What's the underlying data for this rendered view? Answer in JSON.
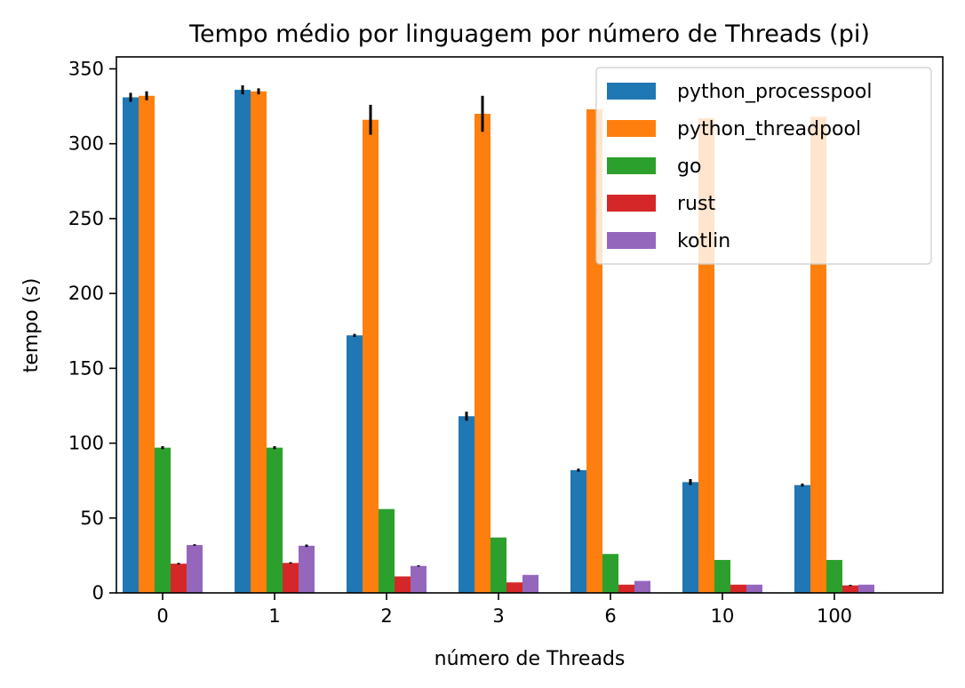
{
  "chart_data": {
    "type": "bar",
    "title": "Tempo médio por linguagem por número de Threads (pi)",
    "xlabel": "número de Threads",
    "ylabel": "tempo (s)",
    "categories": [
      "0",
      "1",
      "2",
      "3",
      "6",
      "10",
      "100"
    ],
    "ylim": [
      0,
      358
    ],
    "yticks": [
      0,
      50,
      100,
      150,
      200,
      250,
      300,
      350
    ],
    "grid": false,
    "legend_position": "top-right",
    "series": [
      {
        "name": "python_processpool",
        "color": "#1f77b4",
        "values": [
          331,
          336,
          172,
          118,
          82,
          74,
          72
        ],
        "errors": [
          3,
          3,
          1,
          3,
          1,
          2,
          1
        ]
      },
      {
        "name": "python_threadpool",
        "color": "#ff7f0e",
        "values": [
          332,
          335,
          316,
          320,
          323,
          317,
          318
        ],
        "errors": [
          3,
          2,
          10,
          12,
          0,
          0,
          0
        ]
      },
      {
        "name": "go",
        "color": "#2ca02c",
        "values": [
          97,
          97,
          56,
          37,
          26,
          22,
          22
        ],
        "errors": [
          1,
          1,
          0,
          0,
          0,
          0,
          0
        ]
      },
      {
        "name": "rust",
        "color": "#d62728",
        "values": [
          19.5,
          20,
          11,
          7,
          5.5,
          5.5,
          5
        ],
        "errors": [
          0.5,
          0.5,
          0,
          0,
          0,
          0,
          0.4
        ]
      },
      {
        "name": "kotlin",
        "color": "#9467bd",
        "values": [
          32,
          31.5,
          18,
          12,
          8,
          5.5,
          5.5
        ],
        "errors": [
          0.5,
          0.8,
          0.4,
          0,
          0,
          0,
          0
        ]
      }
    ]
  }
}
